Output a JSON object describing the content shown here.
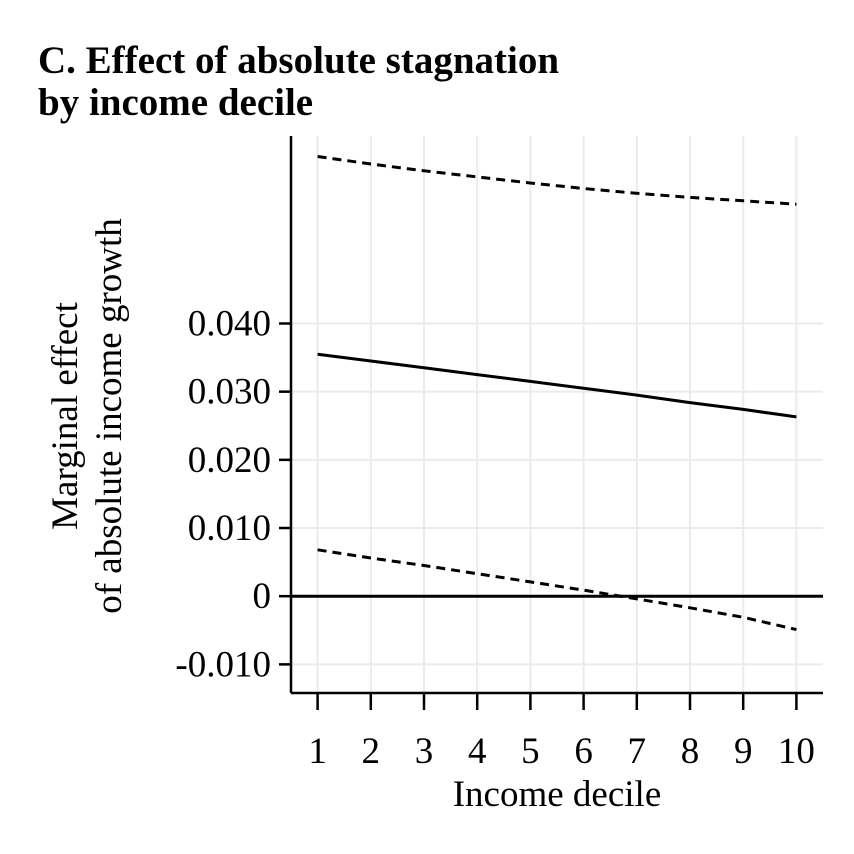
{
  "chart_data": {
    "type": "line",
    "title_line1": "C. Effect of absolute stagnation",
    "title_line2": "by income decile",
    "xlabel": "Income decile",
    "ylabel_line1": "Marginal effect",
    "ylabel_line2": "of absolute income growth",
    "x": [
      1,
      2,
      3,
      4,
      5,
      6,
      7,
      8,
      9,
      10
    ],
    "x_tick_labels": [
      "1",
      "2",
      "3",
      "4",
      "5",
      "6",
      "7",
      "8",
      "9",
      "10"
    ],
    "y_ticks": [
      -0.01,
      0,
      0.01,
      0.02,
      0.03,
      0.04
    ],
    "y_tick_labels": [
      "-0.010",
      "0",
      "0.010",
      "0.020",
      "0.030",
      "0.040"
    ],
    "xlim": [
      0.5,
      10.5
    ],
    "ylim": [
      -0.0142,
      0.0675
    ],
    "grid": true,
    "reference_line_y": 0,
    "series": [
      {
        "style": "dashed",
        "values": [
          0.0645,
          0.0634,
          0.0624,
          0.0615,
          0.0606,
          0.0598,
          0.0591,
          0.0585,
          0.058,
          0.0575
        ]
      },
      {
        "style": "solid",
        "values": [
          0.0355,
          0.0345,
          0.0335,
          0.0325,
          0.0315,
          0.0305,
          0.0295,
          0.0284,
          0.0274,
          0.0263
        ]
      },
      {
        "style": "dashed",
        "values": [
          0.0068,
          0.0056,
          0.0045,
          0.0033,
          0.0021,
          0.0009,
          -0.0004,
          -0.0017,
          -0.0031,
          -0.0049
        ]
      }
    ]
  }
}
